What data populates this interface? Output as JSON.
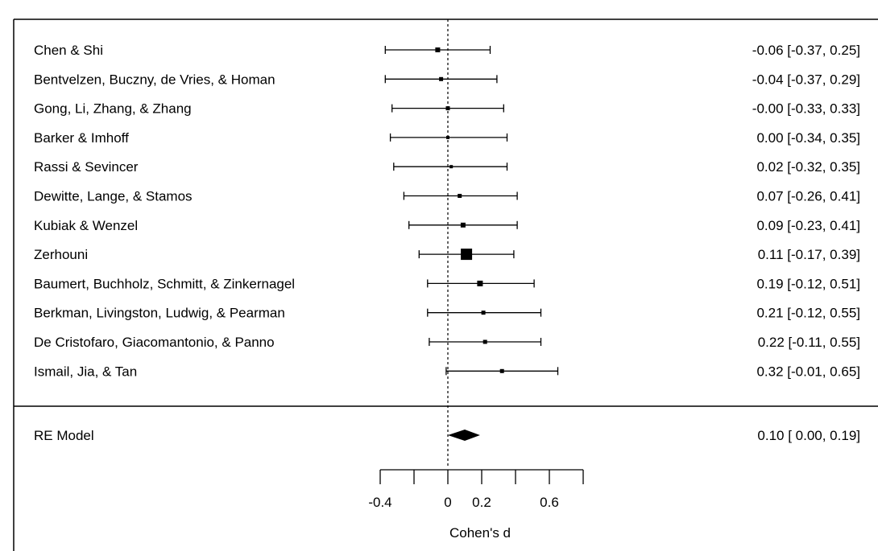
{
  "chart_data": {
    "type": "forest",
    "xlabel": "Cohen's d",
    "xlim": [
      -0.4,
      0.8
    ],
    "x_ticks": [
      -0.4,
      -0.2,
      0,
      0.2,
      0.4,
      0.6,
      0.8
    ],
    "x_tick_labels": [
      {
        "value": -0.4,
        "label": "-0.4"
      },
      {
        "value": 0,
        "label": "0"
      },
      {
        "value": 0.2,
        "label": "0.2"
      },
      {
        "value": 0.6,
        "label": "0.6"
      }
    ],
    "reference_line": 0,
    "studies": [
      {
        "name": "Chen & Shi",
        "estimate": -0.06,
        "ci_low": -0.37,
        "ci_high": 0.25,
        "weight": 6,
        "label": "-0.06 [-0.37, 0.25]"
      },
      {
        "name": "Bentvelzen, Buczny, de Vries, & Homan",
        "estimate": -0.04,
        "ci_low": -0.37,
        "ci_high": 0.29,
        "weight": 5,
        "label": "-0.04 [-0.37, 0.29]"
      },
      {
        "name": "Gong, Li, Zhang, & Zhang",
        "estimate": -0.0,
        "ci_low": -0.33,
        "ci_high": 0.33,
        "weight": 5,
        "label": "-0.00 [-0.33, 0.33]"
      },
      {
        "name": "Barker & Imhoff",
        "estimate": 0.0,
        "ci_low": -0.34,
        "ci_high": 0.35,
        "weight": 4,
        "label": "0.00 [-0.34, 0.35]"
      },
      {
        "name": "Rassi & Sevincer",
        "estimate": 0.02,
        "ci_low": -0.32,
        "ci_high": 0.35,
        "weight": 4,
        "label": "0.02 [-0.32, 0.35]"
      },
      {
        "name": "Dewitte, Lange, & Stamos",
        "estimate": 0.07,
        "ci_low": -0.26,
        "ci_high": 0.41,
        "weight": 5,
        "label": "0.07 [-0.26, 0.41]"
      },
      {
        "name": "Kubiak & Wenzel",
        "estimate": 0.09,
        "ci_low": -0.23,
        "ci_high": 0.41,
        "weight": 6,
        "label": "0.09 [-0.23, 0.41]"
      },
      {
        "name": "Zerhouni",
        "estimate": 0.11,
        "ci_low": -0.17,
        "ci_high": 0.39,
        "weight": 14,
        "label": "0.11 [-0.17, 0.39]"
      },
      {
        "name": "Baumert, Buchholz, Schmitt, & Zinkernagel",
        "estimate": 0.19,
        "ci_low": -0.12,
        "ci_high": 0.51,
        "weight": 7,
        "label": "0.19 [-0.12, 0.51]"
      },
      {
        "name": "Berkman, Livingston, Ludwig, & Pearman",
        "estimate": 0.21,
        "ci_low": -0.12,
        "ci_high": 0.55,
        "weight": 5,
        "label": "0.21 [-0.12, 0.55]"
      },
      {
        "name": "De Cristofaro, Giacomantonio, & Panno",
        "estimate": 0.22,
        "ci_low": -0.11,
        "ci_high": 0.55,
        "weight": 5,
        "label": "0.22 [-0.11, 0.55]"
      },
      {
        "name": "Ismail, Jia, & Tan",
        "estimate": 0.32,
        "ci_low": -0.01,
        "ci_high": 0.65,
        "weight": 5,
        "label": "0.32 [-0.01, 0.65]"
      }
    ],
    "summary": {
      "name": "RE Model",
      "estimate": 0.1,
      "ci_low": 0.0,
      "ci_high": 0.19,
      "label": "0.10 [ 0.00, 0.19]"
    }
  }
}
